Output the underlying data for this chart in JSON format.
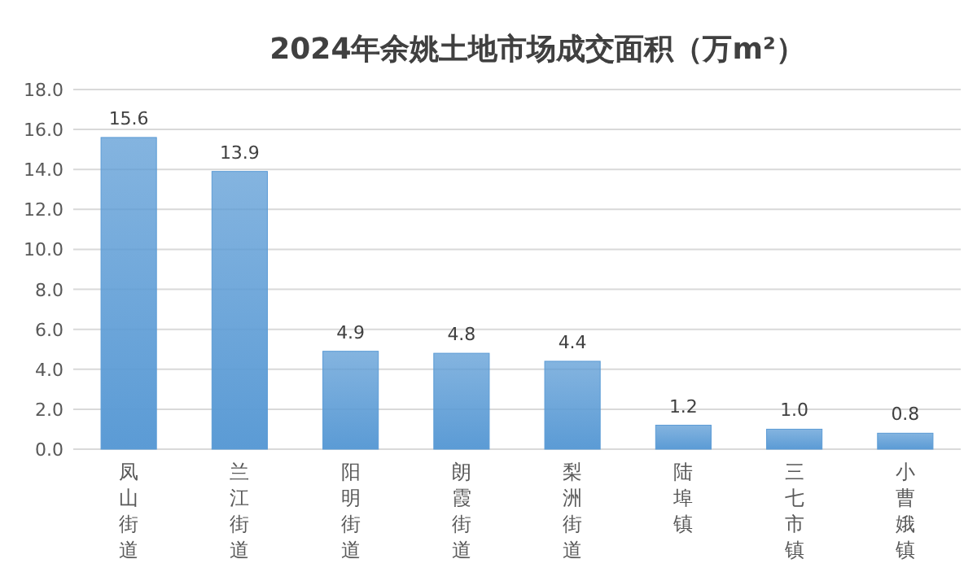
{
  "chart_data": {
    "type": "bar",
    "title": "2024年余姚土地市场成交面积（万m²）",
    "categories": [
      "凤山街道",
      "兰江街道",
      "阳明街道",
      "朗霞街道",
      "梨洲街道",
      "陆埠镇",
      "三七市镇",
      "小曹娥镇"
    ],
    "values": [
      15.6,
      13.9,
      4.9,
      4.8,
      4.4,
      1.2,
      1.0,
      0.8
    ],
    "value_labels": [
      "15.6",
      "13.9",
      "4.9",
      "4.8",
      "4.4",
      "1.2",
      "1.0",
      "0.8"
    ],
    "color": "#5b9bd5",
    "ylim": [
      0,
      18
    ],
    "yticks": [
      {
        "value": 0,
        "label": "0.0"
      },
      {
        "value": 2,
        "label": "2.0"
      },
      {
        "value": 4,
        "label": "4.0"
      },
      {
        "value": 6,
        "label": "6.0"
      },
      {
        "value": 8,
        "label": "8.0"
      },
      {
        "value": 10,
        "label": "10.0"
      },
      {
        "value": 12,
        "label": "12.0"
      },
      {
        "value": 14,
        "label": "14.0"
      },
      {
        "value": 16,
        "label": "16.0"
      },
      {
        "value": 18,
        "label": "18.0"
      }
    ],
    "grid": "y"
  }
}
